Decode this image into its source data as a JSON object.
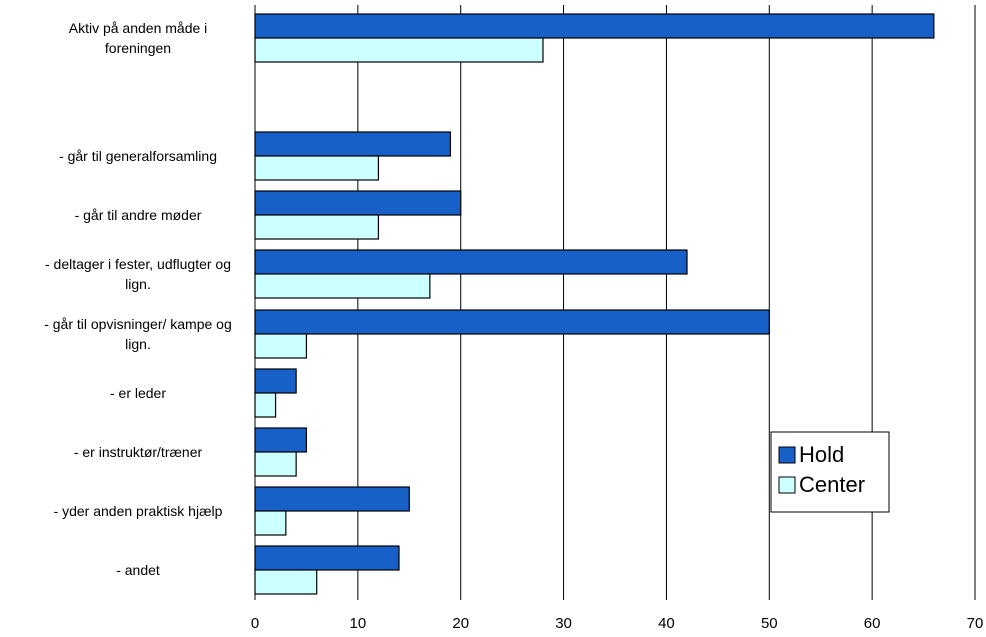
{
  "chart_data": {
    "type": "bar",
    "orientation": "horizontal",
    "categories": [
      [
        "Aktiv på anden måde i",
        "foreningen"
      ],
      [
        "- går til generalforsamling"
      ],
      [
        "- går til andre møder"
      ],
      [
        "- deltager i fester, udflugter og",
        "lign."
      ],
      [
        "- går til opvisninger/ kampe og",
        "lign."
      ],
      [
        "- er leder"
      ],
      [
        "- er instruktør/træner"
      ],
      [
        "- yder anden praktisk hjælp"
      ],
      [
        "- andet"
      ]
    ],
    "series": [
      {
        "name": "Hold",
        "color": "#1760C8",
        "values": [
          66,
          19,
          20,
          42,
          50,
          4,
          5,
          15,
          14
        ]
      },
      {
        "name": "Center",
        "color": "#CCFFFF",
        "values": [
          28,
          12,
          12,
          17,
          5,
          2,
          4,
          3,
          6
        ]
      }
    ],
    "xlim": [
      0,
      70
    ],
    "xticks": [
      0,
      10,
      20,
      30,
      40,
      50,
      60,
      70
    ],
    "grid": true,
    "legend_position": "right"
  }
}
